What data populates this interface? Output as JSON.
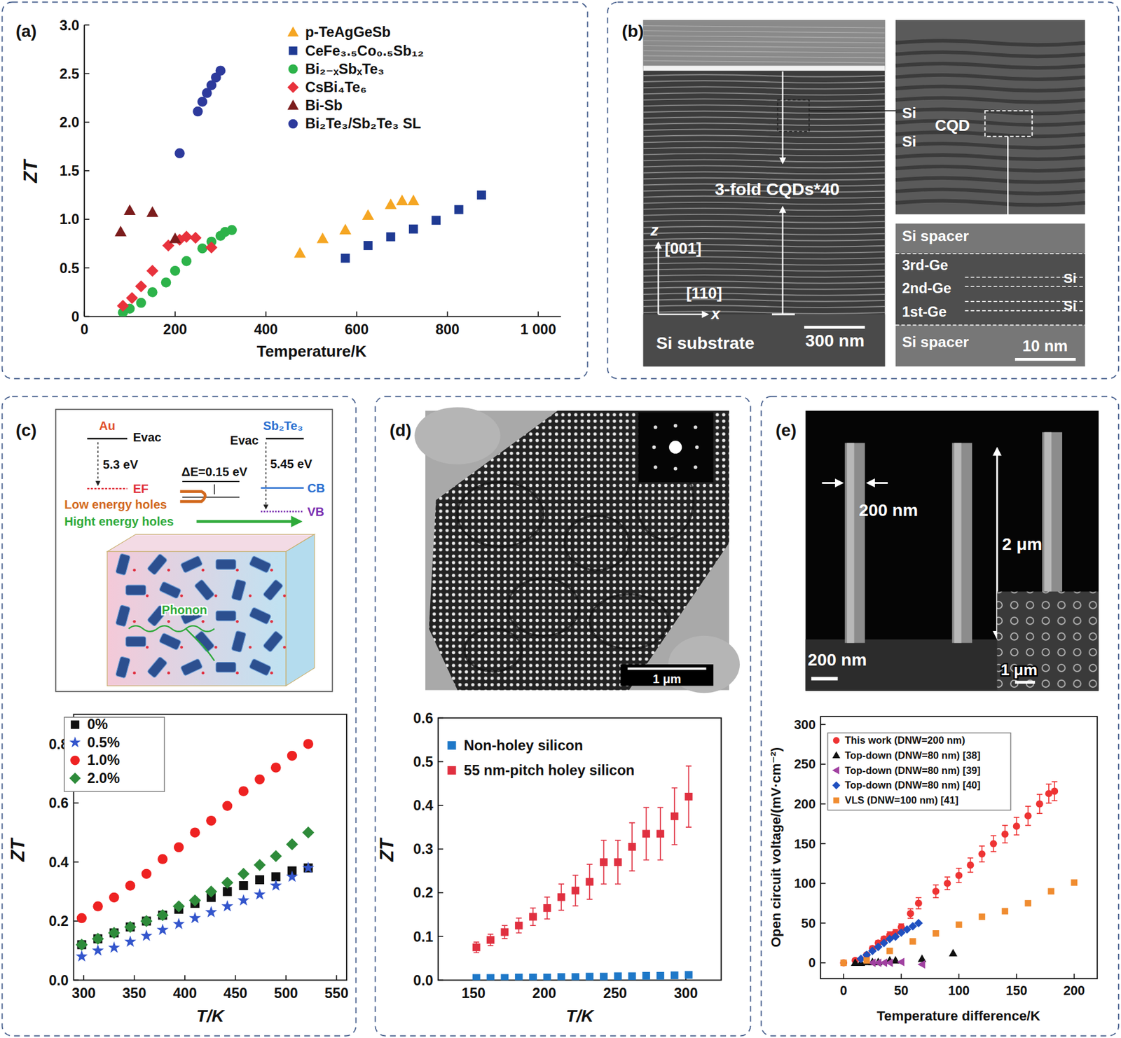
{
  "chart_data": [
    {
      "panel_label": "(a)",
      "type": "scatter",
      "x_label": "Temperature/K",
      "y_label": "ZT",
      "xlim": [
        0,
        1050
      ],
      "xticks": [
        0,
        200,
        400,
        600,
        800,
        {
          "value": 1000,
          "label": "1 000"
        }
      ],
      "ylim": [
        0,
        3.0
      ],
      "yticks": [
        0,
        0.5,
        {
          "value": 1,
          "label": "1.0"
        },
        1.5,
        {
          "value": 2,
          "label": "2.0"
        },
        2.5,
        {
          "value": 3,
          "label": "3.0"
        }
      ],
      "legend": "top-right",
      "series": [
        {
          "name": "p-TeAgGeSb",
          "color": "#f5a623",
          "marker": "triangle",
          "x": [
            475,
            525,
            575,
            625,
            675,
            700,
            725
          ],
          "values": [
            0.65,
            0.8,
            0.89,
            1.04,
            1.15,
            1.19,
            1.19
          ]
        },
        {
          "name": "CeFe₃.₅Co₀.₅Sb₁₂",
          "color": "#1f3a93",
          "marker": "square",
          "x": [
            575,
            625,
            675,
            725,
            775,
            825,
            875
          ],
          "values": [
            0.6,
            0.73,
            0.82,
            0.9,
            0.99,
            1.1,
            1.25
          ]
        },
        {
          "name": "Bi₂₋ₓSbₓTe₃",
          "color": "#2db34a",
          "marker": "circle",
          "x": [
            85,
            100,
            125,
            150,
            180,
            200,
            225,
            260,
            280,
            300,
            310,
            325
          ],
          "values": [
            0.04,
            0.08,
            0.14,
            0.25,
            0.35,
            0.47,
            0.57,
            0.7,
            0.77,
            0.83,
            0.87,
            0.89
          ]
        },
        {
          "name": "CsBi₄Te₆",
          "color": "#e8323c",
          "marker": "diamond",
          "x": [
            85,
            105,
            125,
            150,
            185,
            210,
            225,
            245,
            280
          ],
          "values": [
            0.11,
            0.19,
            0.31,
            0.47,
            0.73,
            0.79,
            0.82,
            0.81,
            0.71
          ]
        },
        {
          "name": "Bi-Sb",
          "color": "#7b1c1c",
          "marker": "triangle",
          "x": [
            80,
            100,
            150,
            200
          ],
          "values": [
            0.87,
            1.09,
            1.07,
            0.8
          ]
        },
        {
          "name": "Bi₂Te₃/Sb₂Te₃ SL",
          "color": "#2d3a9c",
          "marker": "circle",
          "x": [
            210,
            250,
            260,
            270,
            280,
            290,
            300
          ],
          "values": [
            1.68,
            2.11,
            2.21,
            2.3,
            2.38,
            2.46,
            2.53
          ]
        }
      ]
    },
    {
      "type": "scatter",
      "x_label": "T/K",
      "y_label": "ZT",
      "xlim": [
        290,
        560
      ],
      "xticks": [
        300,
        350,
        400,
        450,
        500,
        550
      ],
      "ylim": [
        0,
        0.9
      ],
      "yticks": [
        {
          "value": 0,
          "label": "0.0"
        },
        0.2,
        0.4,
        0.6,
        0.8
      ],
      "legend": "top-left",
      "x": [
        298,
        314,
        330,
        346,
        362,
        378,
        394,
        410,
        426,
        442,
        458,
        474,
        490,
        506,
        522
      ],
      "series": [
        {
          "name": "0%",
          "color": "#111111",
          "marker": "square",
          "values": [
            0.12,
            0.14,
            0.16,
            0.18,
            0.2,
            0.22,
            0.24,
            0.26,
            0.28,
            0.3,
            0.32,
            0.34,
            0.35,
            0.37,
            0.38
          ]
        },
        {
          "name": "0.5%",
          "color": "#3355cc",
          "marker": "star",
          "values": [
            0.08,
            0.1,
            0.11,
            0.13,
            0.15,
            0.17,
            0.19,
            0.21,
            0.23,
            0.25,
            0.27,
            0.29,
            0.32,
            0.35,
            0.38
          ]
        },
        {
          "name": "1.0%",
          "color": "#ee2222",
          "marker": "circle",
          "values": [
            0.21,
            0.25,
            0.28,
            0.32,
            0.36,
            0.41,
            0.45,
            0.5,
            0.54,
            0.59,
            0.64,
            0.68,
            0.72,
            0.76,
            0.8
          ]
        },
        {
          "name": "2.0%",
          "color": "#2e8b3a",
          "marker": "diamond",
          "values": [
            0.12,
            0.14,
            0.16,
            0.18,
            0.2,
            0.22,
            0.25,
            0.27,
            0.3,
            0.33,
            0.36,
            0.39,
            0.42,
            0.46,
            0.5
          ]
        }
      ]
    },
    {
      "type": "scatter",
      "x_label": "T/K",
      "y_label": "ZT",
      "xlim": [
        125,
        325
      ],
      "xticks": [
        150,
        200,
        250,
        300
      ],
      "ylim": [
        0,
        0.6
      ],
      "yticks": [
        {
          "value": 0,
          "label": "0.0"
        },
        0.1,
        0.2,
        0.3,
        0.4,
        0.5,
        0.6
      ],
      "legend": "top-left",
      "x": [
        152,
        162,
        172,
        182,
        192,
        202,
        212,
        222,
        232,
        242,
        252,
        262,
        272,
        282,
        292,
        302
      ],
      "series": [
        {
          "name": "Non-holey silicon",
          "color": "#1e78c8",
          "marker": "square",
          "values": [
            0.005,
            0.005,
            0.005,
            0.006,
            0.006,
            0.006,
            0.007,
            0.007,
            0.008,
            0.008,
            0.009,
            0.009,
            0.01,
            0.01,
            0.011,
            0.012
          ]
        },
        {
          "name": "55 nm-pitch holey silicon",
          "color": "#e03040",
          "marker": "square",
          "values": [
            0.075,
            0.092,
            0.11,
            0.125,
            0.145,
            0.165,
            0.19,
            0.205,
            0.225,
            0.27,
            0.27,
            0.305,
            0.335,
            0.335,
            0.375,
            0.42
          ],
          "errors": [
            0.012,
            0.013,
            0.015,
            0.017,
            0.02,
            0.025,
            0.03,
            0.035,
            0.04,
            0.05,
            0.05,
            0.055,
            0.06,
            0.06,
            0.065,
            0.07
          ]
        }
      ]
    },
    {
      "type": "scatter",
      "x_label": "Temperature difference/K",
      "y_label": "Open circuit voltage/(mV·cm⁻²)",
      "xlim": [
        -20,
        220
      ],
      "xticks": [
        0,
        50,
        100,
        150,
        200
      ],
      "ylim": [
        -20,
        310
      ],
      "yticks": [
        0,
        50,
        100,
        150,
        200,
        250,
        300
      ],
      "legend": "top-left",
      "series": [
        {
          "name": "This work (DNW=200 nm)",
          "color": "#ee3333",
          "marker": "circle",
          "x": [
            0,
            10,
            20,
            25,
            30,
            35,
            40,
            45,
            50,
            58,
            65,
            80,
            90,
            100,
            110,
            120,
            130,
            140,
            150,
            160,
            170,
            178,
            183
          ],
          "values": [
            0,
            3,
            10,
            18,
            25,
            30,
            35,
            38,
            45,
            62,
            75,
            90,
            100,
            110,
            123,
            137,
            150,
            162,
            172,
            185,
            200,
            213,
            216
          ],
          "errors": [
            1,
            2,
            2,
            3,
            3,
            3,
            4,
            4,
            4,
            6,
            7,
            8,
            8,
            9,
            9,
            10,
            10,
            11,
            11,
            12,
            12,
            12,
            12
          ]
        },
        {
          "name": "Top-down (DNW=80 nm) [38]",
          "color": "#111111",
          "marker": "triangle",
          "x": [
            10,
            15,
            20,
            25,
            30,
            40,
            45,
            68,
            95
          ],
          "values": [
            0,
            0,
            1,
            1,
            1,
            3,
            3,
            5,
            12
          ]
        },
        {
          "name": "Top-down (DNW=80 nm) [39]",
          "color": "#a040a0",
          "marker": "triangle-left",
          "x": [
            25,
            30,
            35,
            40,
            50,
            68
          ],
          "values": [
            0,
            0,
            0,
            0,
            1,
            -2
          ]
        },
        {
          "name": "Top-down (DNW=80 nm) [40]",
          "color": "#2050c0",
          "marker": "diamond",
          "x": [
            15,
            20,
            25,
            30,
            35,
            40,
            45,
            50,
            55,
            60,
            65
          ],
          "values": [
            5,
            10,
            15,
            20,
            25,
            30,
            33,
            38,
            42,
            46,
            50
          ]
        },
        {
          "name": "VLS (DNW=100 nm) [41]",
          "color": "#f08c30",
          "marker": "square",
          "x": [
            0,
            20,
            40,
            60,
            80,
            100,
            120,
            140,
            160,
            180,
            200
          ],
          "values": [
            0,
            3,
            15,
            27,
            37,
            48,
            58,
            65,
            75,
            90,
            101
          ]
        }
      ]
    }
  ],
  "figures": {
    "b": {
      "panel_label": "(b)",
      "labels": {
        "title": "3-fold CQDs*40",
        "z": "z",
        "z_dir": "[001]",
        "x_dir": "[110]",
        "x": "x",
        "substrate": "Si substrate",
        "scale_left": "300 nm",
        "si_1": "Si",
        "si_2": "Si",
        "cqd": "CQD",
        "spacer_top": "Si spacer",
        "ge3": "3rd-Ge",
        "ge2": "2nd-Ge",
        "ge1": "1st-Ge",
        "si_3": "Si",
        "si_4": "Si",
        "spacer_bottom": "Si spacer",
        "scale_right": "10 nm"
      }
    },
    "c": {
      "panel_label": "(c)",
      "labels": {
        "au": "Au",
        "evac_left": "Evac",
        "ev_left": "5.3 eV",
        "ef": "EF",
        "delta_e": "ΔE=0.15 eV",
        "low_holes": "Low energy holes",
        "high_holes": "Hight energy holes",
        "sb2te3": "Sb₂Te₃",
        "evac_right": "Evac",
        "ev_right": "5.45 eV",
        "cb": "CB",
        "vb": "VB",
        "phonon": "Phonon"
      }
    },
    "d": {
      "panel_label": "(d)",
      "labels": {
        "scale": "1 μm"
      }
    },
    "e": {
      "panel_label": "(e)",
      "labels": {
        "width": "200 nm",
        "height": "2 μm",
        "scale": "200 nm",
        "inset_scale": "1 μm"
      }
    }
  }
}
